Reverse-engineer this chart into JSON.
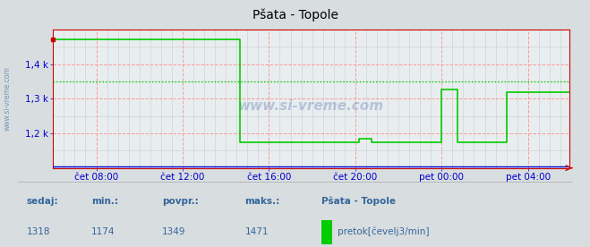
{
  "title": "Pšata - Topole",
  "bg_color": "#d8dde0",
  "plot_bg_color": "#e8eef0",
  "grid_major_color": "#ff9999",
  "grid_minor_color": "#cccccc",
  "line_color": "#00cc00",
  "avg_line_color": "#00cc00",
  "border_color": "#cc0000",
  "text_color": "#0000cc",
  "label_color": "#336699",
  "ytick_labels": [
    "1,2 k",
    "1,3 k",
    "1,4 k"
  ],
  "ytick_values": [
    1200,
    1300,
    1400
  ],
  "ymin": 1100,
  "ymax": 1500,
  "xtick_positions": [
    24,
    72,
    120,
    168,
    216,
    264
  ],
  "xtick_labels": [
    "čet 08:00",
    "čet 12:00",
    "čet 16:00",
    "čet 20:00",
    "pet 00:00",
    "pet 04:00"
  ],
  "avg_value": 1349,
  "sedaj": 1318,
  "min_val": 1174,
  "povpr": 1349,
  "maks": 1471,
  "station_name": "Pšata - Topole",
  "legend_label": "pretok[čevelj3/min]",
  "legend_color": "#00cc00",
  "watermark": "www.si-vreme.com",
  "floor_value": 1174,
  "high_value": 1471,
  "total_pts": 288
}
